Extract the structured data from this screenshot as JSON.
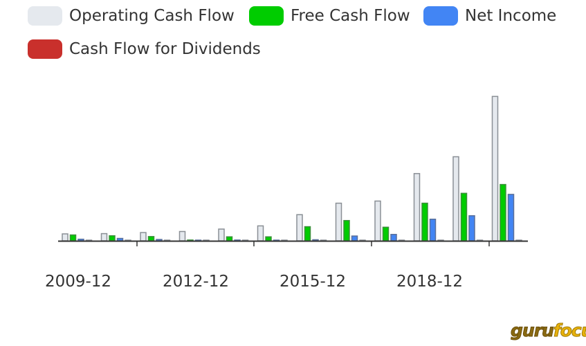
{
  "chart_data": {
    "type": "bar",
    "x_labels": [
      "2009-12",
      "2012-12",
      "2015-12",
      "2018-12"
    ],
    "periods": 12,
    "series": [
      {
        "name": "Operating Cash Flow",
        "color": "#e5e9ee",
        "values": [
          2.6,
          2.7,
          3.1,
          3.5,
          4.4,
          5.6,
          9.8,
          14.1,
          14.9,
          25.2,
          31.5,
          54.1
        ]
      },
      {
        "name": "Free Cash Flow",
        "color": "#00cc00",
        "values": [
          2.2,
          1.9,
          1.6,
          0.3,
          1.5,
          1.5,
          5.3,
          7.6,
          5.1,
          14.1,
          17.8,
          21.1
        ]
      },
      {
        "name": "Net Income",
        "color": "#4285f4",
        "values": [
          0.6,
          0.9,
          0.5,
          0.2,
          0.3,
          0.2,
          0.4,
          1.8,
          2.4,
          8.1,
          9.4,
          17.4
        ]
      },
      {
        "name": "Cash Flow for Dividends",
        "color": "#c9302c",
        "values": [
          0.2,
          0.2,
          0.2,
          0.2,
          0.2,
          0.2,
          0.2,
          0.2,
          0.2,
          0.2,
          0.2,
          0.2
        ]
      }
    ],
    "ylim": [
      0,
      56
    ],
    "legend_position": "top-left",
    "grid": false
  },
  "watermark": {
    "part1": "guru",
    "part2": "focus"
  }
}
